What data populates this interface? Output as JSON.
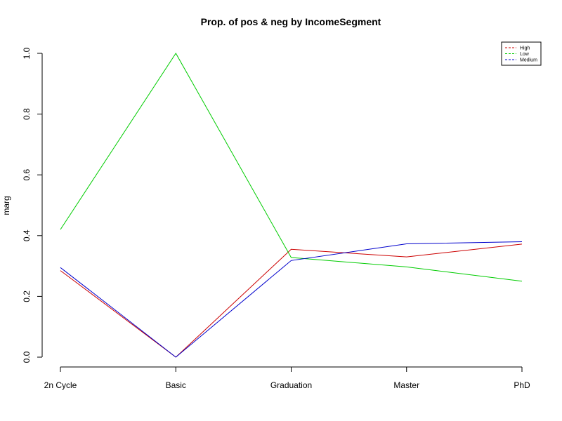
{
  "chart_data": {
    "type": "line",
    "title": "Prop. of pos & neg by IncomeSegment",
    "xlabel": "",
    "ylabel": "marg",
    "categories": [
      "2n Cycle",
      "Basic",
      "Graduation",
      "Master",
      "PhD"
    ],
    "ylim": [
      0,
      1
    ],
    "yticks": [
      "0.0",
      "0.2",
      "0.4",
      "0.6",
      "0.8",
      "1.0"
    ],
    "grid": false,
    "legend_position": "top-right",
    "series": [
      {
        "name": "High",
        "color": "#cc0000",
        "values": [
          0.285,
          0.0,
          0.355,
          0.33,
          0.372
        ]
      },
      {
        "name": "Low",
        "color": "#00cc00",
        "values": [
          0.42,
          1.0,
          0.328,
          0.297,
          0.25
        ]
      },
      {
        "name": "Medium",
        "color": "#0000cc",
        "values": [
          0.295,
          0.0,
          0.318,
          0.373,
          0.38
        ]
      }
    ]
  }
}
